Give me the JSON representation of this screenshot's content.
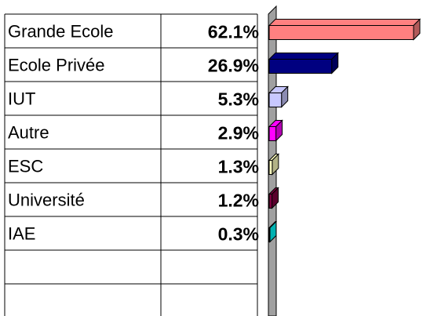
{
  "chart_data": {
    "type": "bar",
    "categories": [
      "Grande Ecole",
      "Ecole Privée",
      "IUT",
      "Autre",
      "ESC",
      "Université",
      "IAE"
    ],
    "values": [
      62.1,
      26.9,
      5.3,
      2.9,
      1.3,
      1.2,
      0.3
    ],
    "value_labels": [
      "62.1%",
      "26.9%",
      "5.3%",
      "2.9%",
      "1.3%",
      "1.2%",
      "0.3%"
    ],
    "colors": [
      "#ff8080",
      "#000080",
      "#c8c8ff",
      "#ff00ff",
      "#ffffc0",
      "#800040",
      "#00ffff"
    ]
  }
}
